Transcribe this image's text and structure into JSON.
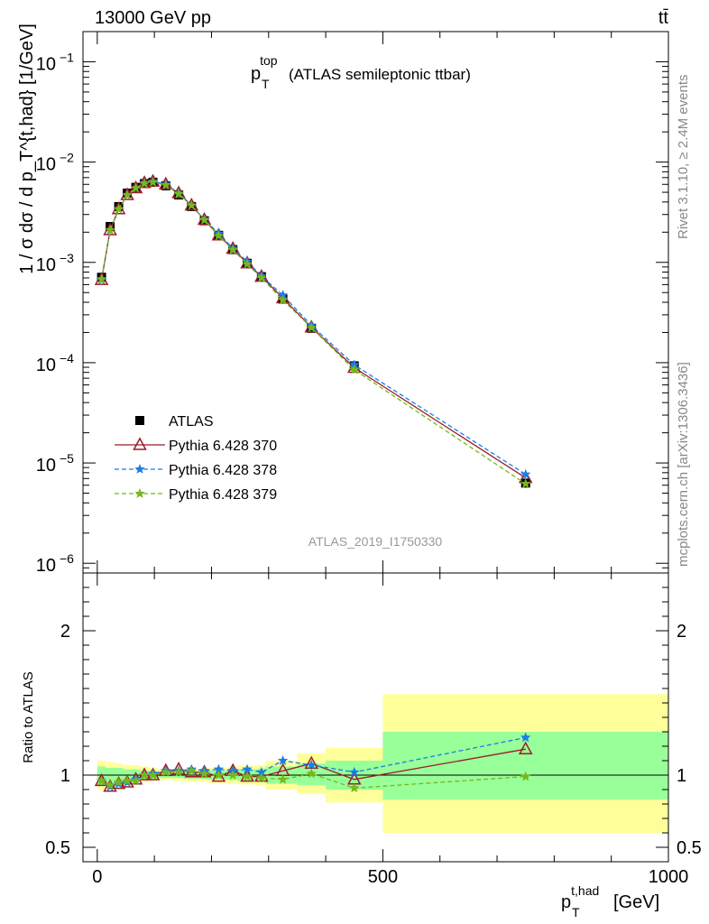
{
  "header": {
    "energy_label": "13000 GeV pp",
    "process_label": "tt̄"
  },
  "side": {
    "rivet_label": "Rivet 3.1.10, ≥ 2.4M events",
    "mcplots_label": "mcplots.cern.ch [arXiv:1306.3436]"
  },
  "chart_data": [
    {
      "type": "line",
      "title": "(ATLAS semileptonic ttbar)",
      "title_symbol": {
        "base": "p",
        "sub": "T",
        "sup": "top"
      },
      "ylabel": "1 / σ dσ / d p_T^{t,had} [1/GeV]",
      "yscale": "log",
      "xlim": [
        -25,
        1000
      ],
      "ylim": [
        8e-07,
        0.2
      ],
      "y_ticks": [
        {
          "v": 0.1,
          "base": "10",
          "exp": "−1"
        },
        {
          "v": 0.01,
          "base": "10",
          "exp": "−2"
        },
        {
          "v": 0.001,
          "base": "10",
          "exp": "−3"
        },
        {
          "v": 0.0001,
          "base": "10",
          "exp": "−4"
        },
        {
          "v": 1e-05,
          "base": "10",
          "exp": "−5"
        },
        {
          "v": 1e-06,
          "base": "10",
          "exp": "−6"
        }
      ],
      "watermark": "ATLAS_2019_I1750330",
      "legend_position": "lower-left",
      "x": [
        7.5,
        22.5,
        37.5,
        52.5,
        67.5,
        82.5,
        97.5,
        120,
        142.5,
        165,
        187.5,
        212.5,
        237.5,
        262.5,
        287.5,
        325,
        375,
        450,
        750
      ],
      "series": [
        {
          "name": "ATLAS",
          "marker": "square",
          "color": "#000000",
          "dash": "none",
          "values": [
            0.00071,
            0.00228,
            0.0036,
            0.0049,
            0.0056,
            0.0061,
            0.0063,
            0.0058,
            0.0047,
            0.0036,
            0.0026,
            0.00186,
            0.00134,
            0.00098,
            0.00072,
            0.00043,
            0.00022,
            9.3e-05,
            6.3e-06
          ]
        },
        {
          "name": "Pythia 6.428 370",
          "marker": "triangle",
          "color": "#9b1b2a",
          "dash": "none",
          "values": [
            0.00067,
            0.0021,
            0.0034,
            0.0047,
            0.0055,
            0.0062,
            0.0064,
            0.006,
            0.0049,
            0.0037,
            0.00266,
            0.00186,
            0.00137,
            0.00098,
            0.00072,
            0.00044,
            0.000225,
            8.9e-05,
            7.1e-06
          ]
        },
        {
          "name": "Pythia 6.428 378",
          "marker": "star",
          "color": "#1a7ee6",
          "dash": "5,3",
          "values": [
            0.00067,
            0.0021,
            0.0034,
            0.0047,
            0.0055,
            0.0062,
            0.0064,
            0.006,
            0.0049,
            0.0037,
            0.00268,
            0.00194,
            0.00138,
            0.00102,
            0.00073,
            0.00047,
            0.000235,
            9.5e-05,
            7.7e-06
          ]
        },
        {
          "name": "Pythia 6.428 379",
          "marker": "star",
          "color": "#74b81a",
          "dash": "5,3",
          "values": [
            0.00068,
            0.0021,
            0.0034,
            0.0047,
            0.0055,
            0.0061,
            0.0063,
            0.0059,
            0.0048,
            0.0037,
            0.00264,
            0.00184,
            0.00133,
            0.00096,
            0.0007,
            0.00042,
            0.000223,
            8.5e-05,
            6.2e-06
          ]
        }
      ]
    },
    {
      "type": "line",
      "ylabel": "Ratio to ATLAS",
      "xlabel_symbol": {
        "base": "p",
        "sub": "T",
        "sup": "t,had",
        "unit": "[GeV]"
      },
      "xlim": [
        -25,
        1000
      ],
      "ylim": [
        0.4,
        2.4
      ],
      "y_ticks": [
        {
          "v": 2,
          "label": "2"
        },
        {
          "v": 1,
          "label": "1"
        },
        {
          "v": 0.5,
          "label": "0.5"
        }
      ],
      "x_ticks": [
        {
          "v": 0,
          "label": "0"
        },
        {
          "v": 500,
          "label": "500"
        },
        {
          "v": 1000,
          "label": "1000"
        }
      ],
      "reference_line": 1,
      "bins": [
        [
          0,
          15
        ],
        [
          15,
          30
        ],
        [
          30,
          45
        ],
        [
          45,
          60
        ],
        [
          60,
          75
        ],
        [
          75,
          90
        ],
        [
          90,
          105
        ],
        [
          105,
          135
        ],
        [
          135,
          150
        ],
        [
          150,
          180
        ],
        [
          180,
          195
        ],
        [
          195,
          230
        ],
        [
          230,
          245
        ],
        [
          245,
          280
        ],
        [
          280,
          295
        ],
        [
          295,
          350
        ],
        [
          350,
          400
        ],
        [
          400,
          500
        ],
        [
          500,
          1000
        ]
      ],
      "band_inner": [
        [
          0.93,
          1.06
        ],
        [
          0.94,
          1.05
        ],
        [
          0.95,
          1.05
        ],
        [
          0.95,
          1.04
        ],
        [
          0.96,
          1.04
        ],
        [
          0.97,
          1.03
        ],
        [
          0.975,
          1.025
        ],
        [
          0.98,
          1.02
        ],
        [
          0.98,
          1.02
        ],
        [
          0.975,
          1.025
        ],
        [
          0.975,
          1.025
        ],
        [
          0.97,
          1.03
        ],
        [
          0.965,
          1.035
        ],
        [
          0.96,
          1.04
        ],
        [
          0.955,
          1.045
        ],
        [
          0.94,
          1.06
        ],
        [
          0.93,
          1.08
        ],
        [
          0.9,
          1.1
        ],
        [
          0.83,
          1.3
        ]
      ],
      "band_outer": [
        [
          0.9,
          1.1
        ],
        [
          0.92,
          1.09
        ],
        [
          0.93,
          1.08
        ],
        [
          0.93,
          1.07
        ],
        [
          0.94,
          1.07
        ],
        [
          0.95,
          1.06
        ],
        [
          0.96,
          1.05
        ],
        [
          0.965,
          1.04
        ],
        [
          0.96,
          1.04
        ],
        [
          0.955,
          1.045
        ],
        [
          0.955,
          1.045
        ],
        [
          0.945,
          1.05
        ],
        [
          0.94,
          1.06
        ],
        [
          0.935,
          1.065
        ],
        [
          0.93,
          1.07
        ],
        [
          0.9,
          1.1
        ],
        [
          0.87,
          1.15
        ],
        [
          0.81,
          1.19
        ],
        [
          0.6,
          1.56
        ]
      ],
      "x": [
        7.5,
        22.5,
        37.5,
        52.5,
        67.5,
        82.5,
        97.5,
        120,
        142.5,
        165,
        187.5,
        212.5,
        237.5,
        262.5,
        287.5,
        325,
        375,
        450,
        750
      ],
      "series": [
        {
          "name": "Pythia 6.428 370",
          "marker": "triangle",
          "color": "#9b1b2a",
          "dash": "none",
          "values": [
            0.96,
            0.92,
            0.94,
            0.95,
            0.97,
            1.0,
            1.0,
            1.03,
            1.04,
            1.02,
            1.02,
            0.99,
            1.03,
            0.99,
            0.99,
            1.03,
            1.08,
            0.97,
            1.18
          ]
        },
        {
          "name": "Pythia 6.428 378",
          "marker": "star",
          "color": "#1a7ee6",
          "dash": "5,3",
          "values": [
            0.96,
            0.92,
            0.94,
            0.95,
            0.97,
            1.0,
            1.01,
            1.03,
            1.03,
            1.04,
            1.03,
            1.04,
            1.03,
            1.04,
            1.02,
            1.1,
            1.07,
            1.02,
            1.26
          ]
        },
        {
          "name": "Pythia 6.428 379",
          "marker": "star",
          "color": "#74b81a",
          "dash": "5,3",
          "values": [
            0.96,
            0.93,
            0.95,
            0.96,
            0.96,
            1.0,
            1.0,
            1.02,
            1.02,
            1.03,
            1.01,
            1.0,
            1.0,
            0.99,
            0.98,
            0.97,
            1.01,
            0.91,
            0.99
          ]
        }
      ]
    }
  ]
}
